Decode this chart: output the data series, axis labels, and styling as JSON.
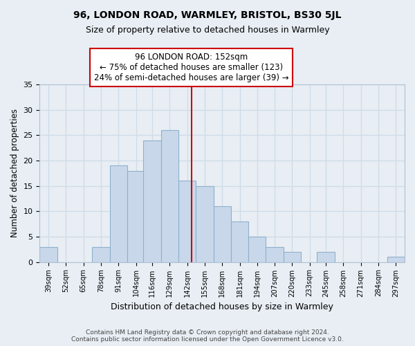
{
  "title": "96, LONDON ROAD, WARMLEY, BRISTOL, BS30 5JL",
  "subtitle": "Size of property relative to detached houses in Warmley",
  "xlabel": "Distribution of detached houses by size in Warmley",
  "ylabel": "Number of detached properties",
  "bin_labels": [
    "39sqm",
    "52sqm",
    "65sqm",
    "78sqm",
    "91sqm",
    "104sqm",
    "116sqm",
    "129sqm",
    "142sqm",
    "155sqm",
    "168sqm",
    "181sqm",
    "194sqm",
    "207sqm",
    "220sqm",
    "233sqm",
    "245sqm",
    "258sqm",
    "271sqm",
    "284sqm",
    "297sqm"
  ],
  "bin_edges": [
    39,
    52,
    65,
    78,
    91,
    104,
    116,
    129,
    142,
    155,
    168,
    181,
    194,
    207,
    220,
    233,
    245,
    258,
    271,
    284,
    297
  ],
  "bar_heights": [
    3,
    0,
    0,
    3,
    19,
    18,
    24,
    26,
    16,
    15,
    11,
    8,
    5,
    3,
    2,
    0,
    2,
    0,
    0,
    0,
    1
  ],
  "bar_color": "#c8d8ea",
  "bar_edgecolor": "#8fb0cc",
  "vline_x": 152,
  "vline_color": "#cc0000",
  "ylim": [
    0,
    35
  ],
  "yticks": [
    0,
    5,
    10,
    15,
    20,
    25,
    30,
    35
  ],
  "annotation_title": "96 LONDON ROAD: 152sqm",
  "annotation_line1": "← 75% of detached houses are smaller (123)",
  "annotation_line2": "24% of semi-detached houses are larger (39) →",
  "annotation_box_color": "#ffffff",
  "annotation_box_edgecolor": "#cc0000",
  "footer_line1": "Contains HM Land Registry data © Crown copyright and database right 2024.",
  "footer_line2": "Contains public sector information licensed under the Open Government Licence v3.0.",
  "background_color": "#e8eef4",
  "grid_color": "#d0dce8"
}
